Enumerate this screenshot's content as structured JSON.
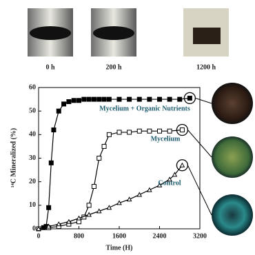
{
  "photo_labels": [
    "0 h",
    "200 h",
    "1200 h"
  ],
  "chart_data": {
    "type": "line",
    "x_label": "Time (H)",
    "y_label": "¹⁴C Mineralized (%)",
    "xlim": [
      0,
      3200
    ],
    "xticks": [
      0,
      800,
      1600,
      2400,
      3200
    ],
    "ylim": [
      0,
      60
    ],
    "yticks": [
      0,
      10,
      20,
      30,
      40,
      50,
      60
    ],
    "annotations": [
      "Mycelium + Organic Nutrients",
      "Mycelium",
      "Control"
    ],
    "series": [
      {
        "name": "Mycelium + Organic Nutrients",
        "color": "#000000",
        "marker": "square-filled",
        "x": [
          0,
          100,
          150,
          200,
          250,
          300,
          400,
          500,
          600,
          700,
          800,
          900,
          1000,
          1100,
          1200,
          1300,
          1400,
          1600,
          1800,
          2000,
          2200,
          2400,
          2600,
          2800,
          3000
        ],
        "values": [
          0,
          0.5,
          1,
          9,
          28,
          42,
          50,
          53,
          54,
          54.5,
          54.5,
          55,
          55,
          55,
          55,
          55,
          55,
          55,
          55,
          55,
          55,
          55,
          55,
          55,
          55.5
        ]
      },
      {
        "name": "Mycelium",
        "color": "#000000",
        "marker": "square-open",
        "x": [
          0,
          200,
          400,
          600,
          800,
          900,
          1000,
          1100,
          1200,
          1300,
          1400,
          1600,
          1800,
          2000,
          2200,
          2400,
          2600,
          2850
        ],
        "values": [
          0,
          0.5,
          1,
          2,
          3,
          5,
          10,
          18,
          30,
          35,
          40,
          41,
          41,
          41.5,
          41.5,
          41.5,
          41.5,
          42
        ]
      },
      {
        "name": "Control",
        "color": "#000000",
        "marker": "triangle-open",
        "x": [
          0,
          200,
          400,
          600,
          800,
          1000,
          1200,
          1400,
          1600,
          1800,
          2000,
          2200,
          2400,
          2600,
          2700,
          2850
        ],
        "values": [
          0,
          1,
          2,
          3,
          4.5,
          6,
          7.5,
          9,
          11,
          12.5,
          14.5,
          16.5,
          18.5,
          21,
          23,
          27
        ]
      }
    ]
  }
}
